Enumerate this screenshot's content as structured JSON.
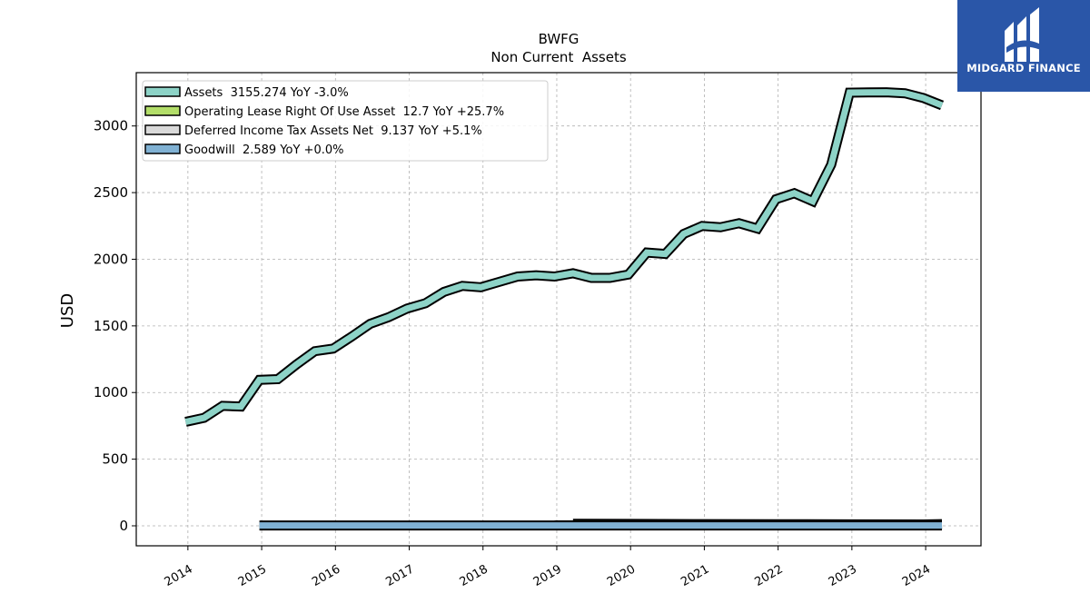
{
  "brand": {
    "name": "MIDGARD FINANCE",
    "bg": "#2a56a8"
  },
  "chart_data": {
    "type": "area",
    "title": "BWFG",
    "subtitle": "Non Current  Assets",
    "ylabel": "USD",
    "xlabel": "",
    "ylim": [
      -150,
      3400
    ],
    "xlim": [
      2013.3,
      2024.75
    ],
    "yticks": [
      0,
      500,
      1000,
      1500,
      2000,
      2500,
      3000
    ],
    "xticks": [
      2014,
      2015,
      2016,
      2017,
      2018,
      2019,
      2020,
      2021,
      2022,
      2023,
      2024
    ],
    "grid": true,
    "legend_position": "top-left",
    "series": [
      {
        "name": "Assets",
        "legend": "Assets  3155.274 YoY -3.0%",
        "color": "#8dd3c7",
        "points": [
          [
            2013.97,
            780
          ],
          [
            2014.22,
            810
          ],
          [
            2014.47,
            900
          ],
          [
            2014.72,
            895
          ],
          [
            2014.97,
            1095
          ],
          [
            2015.22,
            1100
          ],
          [
            2015.47,
            1210
          ],
          [
            2015.72,
            1310
          ],
          [
            2015.97,
            1330
          ],
          [
            2016.22,
            1420
          ],
          [
            2016.47,
            1515
          ],
          [
            2016.72,
            1565
          ],
          [
            2016.97,
            1630
          ],
          [
            2017.22,
            1670
          ],
          [
            2017.47,
            1755
          ],
          [
            2017.72,
            1800
          ],
          [
            2017.97,
            1790
          ],
          [
            2018.22,
            1830
          ],
          [
            2018.47,
            1870
          ],
          [
            2018.72,
            1880
          ],
          [
            2018.97,
            1870
          ],
          [
            2019.22,
            1895
          ],
          [
            2019.47,
            1860
          ],
          [
            2019.72,
            1860
          ],
          [
            2019.97,
            1885
          ],
          [
            2020.22,
            2050
          ],
          [
            2020.47,
            2040
          ],
          [
            2020.72,
            2190
          ],
          [
            2020.97,
            2250
          ],
          [
            2021.22,
            2240
          ],
          [
            2021.47,
            2270
          ],
          [
            2021.72,
            2230
          ],
          [
            2021.97,
            2450
          ],
          [
            2022.22,
            2495
          ],
          [
            2022.47,
            2435
          ],
          [
            2022.72,
            2710
          ],
          [
            2022.97,
            3250
          ],
          [
            2023.22,
            3252
          ],
          [
            2023.47,
            3253
          ],
          [
            2023.72,
            3245
          ],
          [
            2023.97,
            3210
          ],
          [
            2024.22,
            3155
          ]
        ]
      },
      {
        "name": "Operating Lease Right Of Use Asset",
        "legend": "Operating Lease Right Of Use Asset  12.7 YoY +25.7%",
        "color": "#b3de69",
        "points": [
          [
            2019.22,
            15
          ],
          [
            2019.97,
            14
          ],
          [
            2020.97,
            13
          ],
          [
            2021.97,
            12
          ],
          [
            2022.97,
            11
          ],
          [
            2023.97,
            10
          ],
          [
            2024.22,
            12.7
          ]
        ]
      },
      {
        "name": "Deferred Income Tax Assets Net",
        "legend": "Deferred Income Tax Assets Net  9.137 YoY +5.1%",
        "color": "#d9d9d9",
        "points": [
          [
            2018.97,
            3
          ],
          [
            2019.97,
            4
          ],
          [
            2020.97,
            6
          ],
          [
            2021.97,
            9
          ],
          [
            2022.97,
            10
          ],
          [
            2023.97,
            9
          ],
          [
            2024.22,
            9.137
          ]
        ]
      },
      {
        "name": "Goodwill",
        "legend": "Goodwill  2.589 YoY +0.0%",
        "color": "#80b1d3",
        "points": [
          [
            2014.97,
            2.589
          ],
          [
            2024.22,
            2.589
          ]
        ]
      }
    ]
  }
}
